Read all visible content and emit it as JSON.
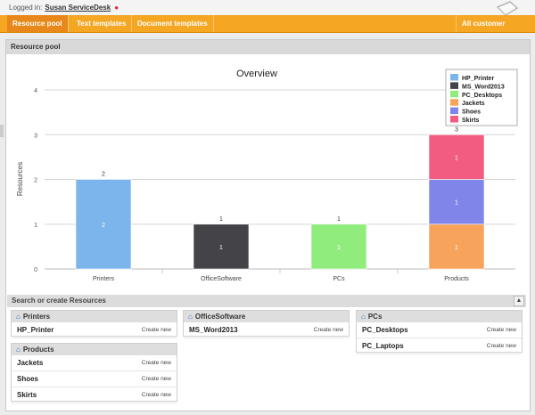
{
  "header": {
    "logged_label": "Logged in:",
    "user": "Susan ServiceDesk"
  },
  "tabs": [
    {
      "label": "Resource pool"
    },
    {
      "label": "Text templates"
    },
    {
      "label": "Document templates"
    },
    {
      "label": "All customer groups"
    }
  ],
  "panel": {
    "title": "Resource pool"
  },
  "search": {
    "title": "Search or create Resources",
    "create_label": "Create new"
  },
  "groups": [
    {
      "name": "Printers",
      "items": [
        "HP_Printer"
      ]
    },
    {
      "name": "OfficeSoftware",
      "items": [
        "MS_Word2013"
      ]
    },
    {
      "name": "PCs",
      "items": [
        "PC_Desktops",
        "PC_Laptops"
      ]
    },
    {
      "name": "Products",
      "items": [
        "Jackets",
        "Shoes",
        "Skirts"
      ]
    }
  ],
  "chart_data": {
    "type": "bar",
    "title": "Overview",
    "ylabel": "Resources",
    "xlabel": "",
    "ylim": [
      0,
      4
    ],
    "yticks": [
      0,
      1,
      2,
      3,
      4
    ],
    "grid": true,
    "legend_position": "top-right",
    "categories": [
      "Printers",
      "OfficeSoftware",
      "PCs",
      "Products"
    ],
    "series": [
      {
        "name": "HP_Printer",
        "color": "#7cb5ec",
        "values": [
          2,
          0,
          0,
          0
        ]
      },
      {
        "name": "MS_Word2013",
        "color": "#434348",
        "values": [
          0,
          1,
          0,
          0
        ]
      },
      {
        "name": "PC_Desktops",
        "color": "#90ed7d",
        "values": [
          0,
          0,
          1,
          0
        ]
      },
      {
        "name": "Jackets",
        "color": "#f7a35c",
        "values": [
          0,
          0,
          0,
          1
        ]
      },
      {
        "name": "Shoes",
        "color": "#8085e9",
        "values": [
          0,
          0,
          0,
          1
        ]
      },
      {
        "name": "Skirts",
        "color": "#f15c80",
        "values": [
          0,
          0,
          0,
          1
        ]
      }
    ],
    "totals": [
      2,
      1,
      1,
      3
    ]
  }
}
